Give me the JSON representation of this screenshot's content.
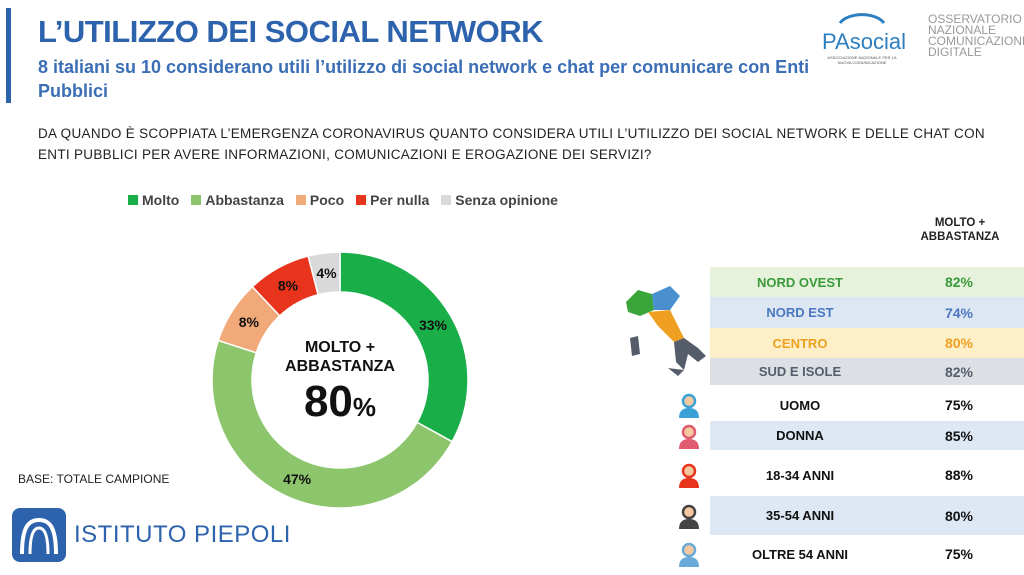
{
  "header": {
    "title": "L’UTILIZZO DEI SOCIAL NETWORK",
    "subtitle": "8 italiani su 10 considerano utili l’utilizzo di social network e chat per comunicare con Enti Pubblici"
  },
  "question": "DA QUANDO È SCOPPIATA L’EMERGENZA CORONAVIRUS QUANTO CONSIDERA UTILI L’UTILIZZO DEI SOCIAL NETWORK E DELLE CHAT CON ENTI PUBBLICI PER AVERE INFORMAZIONI, COMUNICAZIONI E EROGAZIONE DEI SERVIZI?",
  "logos": {
    "pasocial": "PAsocial",
    "pasocial_sub": "ASSOCIAZIONE NAZIONALE PER LA NUOVA COMUNICAZIONE",
    "observatory": "OSSERVATORIO NAZIONALE COMUNICAZIONE DIGITALE",
    "istituto": "ISTITUTO PIEPOLI"
  },
  "base": "BASE: TOTALE CAMPIONE",
  "chart_data": [
    {
      "type": "pie",
      "subtype": "donut",
      "legend_position": "top",
      "categories": [
        "Molto",
        "Abbastanza",
        "Poco",
        "Per nulla",
        "Senza opinione"
      ],
      "values": [
        33,
        47,
        8,
        8,
        4
      ],
      "labels": [
        "33%",
        "47%",
        "8%",
        "8%",
        "4%"
      ],
      "colors": [
        "#1aae48",
        "#8cc56b",
        "#f2a97a",
        "#e8341c",
        "#d9d9d9"
      ],
      "center_label": "MOLTO + ABBASTANZA",
      "center_value": "80",
      "center_unit": "%"
    },
    {
      "type": "table",
      "column_header": "MOLTO + ABBASTANZA",
      "rows": [
        {
          "label": "NORD OVEST",
          "value": "82%",
          "color": "#3a9a3a",
          "bg": "#e6f2dc"
        },
        {
          "label": "NORD EST",
          "value": "74%",
          "color": "#4a78c0",
          "bg": "#dde6f3"
        },
        {
          "label": "CENTRO",
          "value": "80%",
          "color": "#f0a020",
          "bg": "#fdf0c8"
        },
        {
          "label": "SUD E ISOLE",
          "value": "82%",
          "color": "#555d6a",
          "bg": "#dcdfe4"
        },
        {
          "label": "UOMO",
          "value": "75%",
          "color": "#111",
          "bg": "#ffffff"
        },
        {
          "label": "DONNA",
          "value": "85%",
          "color": "#111",
          "bg": "#dde8f4"
        },
        {
          "label": "18-34 ANNI",
          "value": "88%",
          "color": "#111",
          "bg": "#ffffff"
        },
        {
          "label": "35-54 ANNI",
          "value": "80%",
          "color": "#111",
          "bg": "#dde8f4"
        },
        {
          "label": "OLTRE 54 ANNI",
          "value": "75%",
          "color": "#111",
          "bg": "#ffffff"
        }
      ]
    }
  ]
}
